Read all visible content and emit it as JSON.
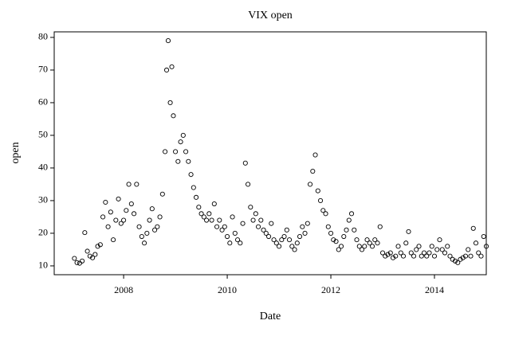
{
  "chart_data": {
    "type": "scatter",
    "title": "VIX open",
    "x_label": "Date",
    "y_label": "open",
    "x": [
      2007.05,
      2007.1,
      2007.15,
      2007.2,
      2007.25,
      2007.3,
      2007.35,
      2007.4,
      2007.45,
      2007.5,
      2007.55,
      2007.6,
      2007.65,
      2007.7,
      2007.75,
      2007.8,
      2007.85,
      2007.9,
      2007.95,
      2008.0,
      2008.05,
      2008.1,
      2008.15,
      2008.2,
      2008.25,
      2008.3,
      2008.35,
      2008.4,
      2008.45,
      2008.5,
      2008.55,
      2008.6,
      2008.65,
      2008.7,
      2008.75,
      2008.8,
      2008.83,
      2008.86,
      2008.9,
      2008.93,
      2008.96,
      2009.0,
      2009.05,
      2009.1,
      2009.15,
      2009.2,
      2009.25,
      2009.3,
      2009.35,
      2009.4,
      2009.45,
      2009.5,
      2009.55,
      2009.6,
      2009.65,
      2009.7,
      2009.75,
      2009.8,
      2009.85,
      2009.9,
      2009.95,
      2010.0,
      2010.05,
      2010.1,
      2010.15,
      2010.2,
      2010.25,
      2010.3,
      2010.35,
      2010.4,
      2010.45,
      2010.5,
      2010.55,
      2010.6,
      2010.65,
      2010.7,
      2010.75,
      2010.8,
      2010.85,
      2010.9,
      2010.95,
      2011.0,
      2011.05,
      2011.1,
      2011.15,
      2011.2,
      2011.25,
      2011.3,
      2011.35,
      2011.4,
      2011.45,
      2011.5,
      2011.55,
      2011.6,
      2011.65,
      2011.7,
      2011.75,
      2011.8,
      2011.85,
      2011.9,
      2011.95,
      2012.0,
      2012.05,
      2012.1,
      2012.15,
      2012.2,
      2012.25,
      2012.3,
      2012.35,
      2012.4,
      2012.45,
      2012.5,
      2012.55,
      2012.6,
      2012.65,
      2012.7,
      2012.75,
      2012.8,
      2012.85,
      2012.9,
      2012.95,
      2013.0,
      2013.05,
      2013.1,
      2013.15,
      2013.2,
      2013.25,
      2013.3,
      2013.35,
      2013.4,
      2013.45,
      2013.5,
      2013.55,
      2013.6,
      2013.65,
      2013.7,
      2013.75,
      2013.8,
      2013.85,
      2013.9,
      2013.95,
      2014.0,
      2014.05,
      2014.1,
      2014.15,
      2014.2,
      2014.25,
      2014.3,
      2014.35,
      2014.4,
      2014.45,
      2014.5,
      2014.55,
      2014.6,
      2014.65,
      2014.7,
      2014.75,
      2014.8,
      2014.85,
      2014.9,
      2014.95,
      2015.0
    ],
    "values": [
      12.3,
      11,
      10.8,
      11.5,
      20.2,
      14.5,
      13,
      12.5,
      13.5,
      16,
      16.5,
      25,
      29.5,
      22,
      26.5,
      18,
      24,
      30.5,
      23,
      24,
      27,
      35,
      29,
      26,
      35,
      22,
      19,
      17,
      20,
      24,
      27.5,
      21,
      22,
      25,
      32,
      45,
      70,
      79,
      60,
      71,
      56,
      45,
      42,
      48,
      50,
      45,
      42,
      38,
      34,
      31,
      28,
      26,
      25,
      24,
      26,
      24,
      29,
      22,
      24,
      21,
      22,
      19,
      17,
      25,
      20,
      18,
      17,
      23,
      41.5,
      35,
      28,
      24,
      26,
      22,
      24,
      21,
      20,
      19,
      23,
      18,
      17,
      16,
      18,
      19,
      21,
      18,
      16,
      15,
      17,
      19,
      22,
      20,
      23,
      35,
      39,
      44,
      33,
      30,
      27,
      26,
      22,
      20,
      18,
      17.5,
      15,
      16,
      19,
      21,
      24,
      26,
      21,
      18,
      16,
      15,
      16,
      18,
      17,
      16,
      18,
      17,
      22,
      14,
      13,
      13.5,
      14,
      12.5,
      13,
      16,
      14,
      13,
      17,
      20.5,
      14,
      13,
      15,
      16,
      13,
      14,
      13,
      14,
      16,
      13,
      15,
      18,
      15,
      14,
      16,
      13,
      12,
      11.5,
      11,
      12,
      12.5,
      13,
      15,
      13,
      21.5,
      17,
      14,
      13,
      19,
      16
    ],
    "color": "#000000",
    "xlim": [
      2006.66,
      2015.0
    ],
    "xticks": [
      2008,
      2010,
      2012,
      2014
    ],
    "ylim": [
      7.3,
      81.7
    ],
    "yticks": [
      10,
      20,
      30,
      40,
      50,
      60,
      70,
      80
    ]
  }
}
